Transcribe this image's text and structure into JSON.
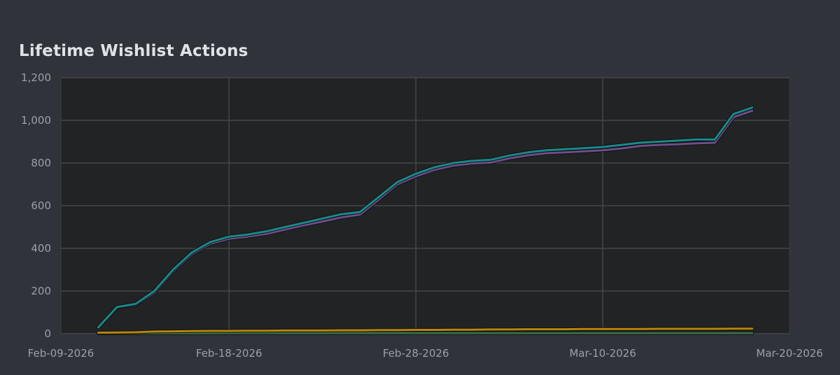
{
  "chart_data": {
    "type": "line",
    "title": "Lifetime Wishlist Actions",
    "xlabel": "",
    "ylabel": "",
    "ylim": [
      0,
      1200
    ],
    "xlim": [
      "2026-02-09",
      "2026-03-20"
    ],
    "x_ticks": [
      "Feb-09-2026",
      "Feb-18-2026",
      "Feb-28-2026",
      "Mar-10-2026",
      "Mar-20-2026"
    ],
    "y_ticks": [
      0,
      200,
      400,
      600,
      800,
      "1,000",
      "1,200"
    ],
    "grid": true,
    "x": [
      "2026-02-11",
      "2026-02-12",
      "2026-02-13",
      "2026-02-14",
      "2026-02-15",
      "2026-02-16",
      "2026-02-17",
      "2026-02-18",
      "2026-02-19",
      "2026-02-20",
      "2026-02-21",
      "2026-02-22",
      "2026-02-23",
      "2026-02-24",
      "2026-02-25",
      "2026-02-26",
      "2026-02-27",
      "2026-02-28",
      "2026-03-01",
      "2026-03-02",
      "2026-03-03",
      "2026-03-04",
      "2026-03-05",
      "2026-03-06",
      "2026-03-07",
      "2026-03-08",
      "2026-03-09",
      "2026-03-10",
      "2026-03-11",
      "2026-03-12",
      "2026-03-13",
      "2026-03-14",
      "2026-03-15",
      "2026-03-16",
      "2026-03-17",
      "2026-03-18"
    ],
    "series": [
      {
        "color": "#1a8a8a",
        "values": [
          30,
          125,
          140,
          200,
          300,
          380,
          430,
          455,
          465,
          480,
          500,
          520,
          540,
          560,
          570,
          640,
          710,
          750,
          780,
          800,
          810,
          815,
          835,
          850,
          860,
          865,
          870,
          875,
          885,
          895,
          900,
          905,
          910,
          910,
          1030,
          1060
        ]
      },
      {
        "color": "#6e4e8a",
        "values": [
          30,
          122,
          135,
          192,
          292,
          372,
          422,
          445,
          455,
          468,
          488,
          508,
          526,
          545,
          558,
          628,
          700,
          738,
          768,
          788,
          798,
          802,
          822,
          836,
          846,
          850,
          855,
          860,
          868,
          880,
          885,
          888,
          892,
          895,
          1015,
          1045
        ]
      },
      {
        "color": "#b8860b",
        "values": [
          5,
          6,
          7,
          10,
          11,
          12,
          13,
          13,
          14,
          14,
          15,
          15,
          15,
          16,
          16,
          17,
          17,
          18,
          18,
          19,
          19,
          20,
          20,
          21,
          21,
          21,
          22,
          22,
          22,
          22,
          23,
          23,
          23,
          23,
          24,
          24
        ]
      },
      {
        "color": "#3a6e4a",
        "values": [
          2,
          2,
          2,
          2,
          2,
          2,
          2,
          3,
          3,
          3,
          3,
          3,
          3,
          3,
          3,
          3,
          3,
          3,
          3,
          3,
          3,
          3,
          3,
          3,
          3,
          3,
          3,
          3,
          3,
          3,
          3,
          3,
          3,
          3,
          3,
          3
        ]
      }
    ]
  },
  "colors": {
    "page_bg": "#30333a",
    "plot_bg": "#222324",
    "grid": "#44464a",
    "tick_text": "#9aa0a8",
    "title_text": "#dfe3e8"
  }
}
